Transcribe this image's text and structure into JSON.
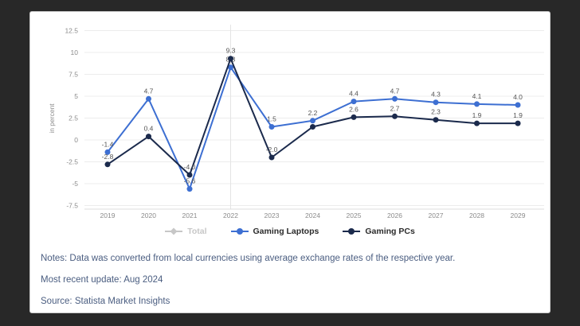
{
  "page": {
    "background_color": "#282828",
    "card_color": "#ffffff"
  },
  "chart_data": {
    "type": "line",
    "title": "",
    "xlabel": "",
    "ylabel": "in percent",
    "categories": [
      "2019",
      "2020",
      "2021",
      "2022",
      "2023",
      "2024",
      "2025",
      "2026",
      "2027",
      "2028",
      "2029"
    ],
    "yticks": [
      12.5,
      10,
      7.5,
      5,
      2.5,
      0,
      -2.5,
      -5,
      -7.5
    ],
    "ylim": [
      -7.5,
      12.5
    ],
    "grid": true,
    "crosshair_year": "2022",
    "legend_position": "bottom",
    "axis_color": "#8b8b8b",
    "gridline_color": "#ececec",
    "data_label_color": "#555555",
    "series": [
      {
        "name": "Total",
        "color": "#c7c7c7",
        "marker": "diamond",
        "visible": false,
        "values": []
      },
      {
        "name": "Gaming Laptops",
        "color": "#3d6fd2",
        "marker": "circle",
        "visible": true,
        "values": [
          -1.4,
          4.7,
          -5.6,
          8.3,
          1.5,
          2.2,
          4.4,
          4.7,
          4.3,
          4.1,
          4.0
        ]
      },
      {
        "name": "Gaming PCs",
        "color": "#1b2a4c",
        "marker": "circle",
        "visible": true,
        "values": [
          -2.8,
          0.4,
          -4.0,
          9.3,
          -2.0,
          1.5,
          2.6,
          2.7,
          2.3,
          1.9,
          1.9
        ],
        "hidden_labels": [
          5
        ]
      }
    ]
  },
  "footer": {
    "notes": "Notes: Data was converted from local currencies using average exchange rates of the respective year.",
    "update": "Most recent update: Aug 2024",
    "source": "Source: Statista Market Insights"
  }
}
